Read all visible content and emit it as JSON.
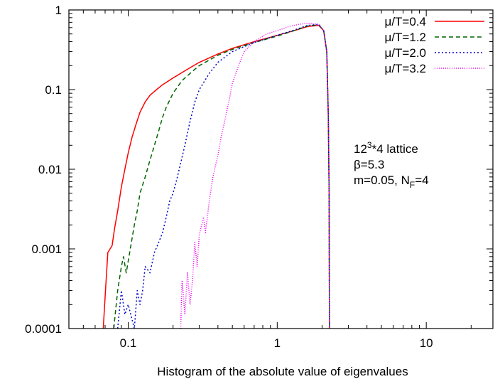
{
  "chart_data": {
    "type": "line",
    "title": "",
    "xlabel": "Histogram of the absolute value of eigenvalues",
    "ylabel": "",
    "xscale": "log",
    "yscale": "log",
    "xlim": [
      0.04,
      28
    ],
    "ylim": [
      0.0001,
      1
    ],
    "grid": false,
    "legend_position": "top-right",
    "x_ticks": [
      {
        "value": 0.1,
        "label": "0.1"
      },
      {
        "value": 1,
        "label": "1"
      },
      {
        "value": 10,
        "label": "10"
      }
    ],
    "y_ticks": [
      {
        "value": 1,
        "label": "1"
      },
      {
        "value": 0.1,
        "label": "0.1"
      },
      {
        "value": 0.01,
        "label": "0.01"
      },
      {
        "value": 0.001,
        "label": "0.001"
      },
      {
        "value": 0.0001,
        "label": "0.0001"
      }
    ],
    "annotations": {
      "lattice_base": "12",
      "lattice_exp": "3",
      "lattice_rest": "*4 lattice",
      "beta": "β=5.3",
      "mass_prefix": "m=0.05, N",
      "mass_sub": "F",
      "mass_suffix": "=4"
    },
    "series": [
      {
        "name": "μ/T=0.4",
        "color": "#ff0000",
        "dash": "solid",
        "points": [
          [
            0.068,
            0.0001
          ],
          [
            0.07,
            0.00025
          ],
          [
            0.073,
            0.0009
          ],
          [
            0.078,
            0.0011
          ],
          [
            0.081,
            0.0018
          ],
          [
            0.085,
            0.003
          ],
          [
            0.09,
            0.006
          ],
          [
            0.095,
            0.01
          ],
          [
            0.1,
            0.016
          ],
          [
            0.106,
            0.025
          ],
          [
            0.113,
            0.037
          ],
          [
            0.12,
            0.052
          ],
          [
            0.13,
            0.07
          ],
          [
            0.14,
            0.085
          ],
          [
            0.155,
            0.1
          ],
          [
            0.17,
            0.115
          ],
          [
            0.2,
            0.14
          ],
          [
            0.25,
            0.18
          ],
          [
            0.3,
            0.22
          ],
          [
            0.4,
            0.28
          ],
          [
            0.5,
            0.33
          ],
          [
            0.7,
            0.4
          ],
          [
            1.0,
            0.48
          ],
          [
            1.3,
            0.55
          ],
          [
            1.6,
            0.62
          ],
          [
            1.9,
            0.64
          ],
          [
            2.05,
            0.55
          ],
          [
            2.15,
            0.3
          ],
          [
            2.2,
            0.05
          ],
          [
            2.23,
            0.005
          ],
          [
            2.24,
            0.0001
          ]
        ]
      },
      {
        "name": "μ/T=1.2",
        "color": "#006400",
        "dash": "6,4",
        "points": [
          [
            0.08,
            0.0001
          ],
          [
            0.085,
            0.0003
          ],
          [
            0.09,
            0.0006
          ],
          [
            0.093,
            0.0008
          ],
          [
            0.097,
            0.0005
          ],
          [
            0.1,
            0.0007
          ],
          [
            0.105,
            0.0012
          ],
          [
            0.11,
            0.002
          ],
          [
            0.115,
            0.003
          ],
          [
            0.12,
            0.005
          ],
          [
            0.13,
            0.008
          ],
          [
            0.14,
            0.013
          ],
          [
            0.15,
            0.02
          ],
          [
            0.16,
            0.03
          ],
          [
            0.17,
            0.045
          ],
          [
            0.18,
            0.06
          ],
          [
            0.2,
            0.09
          ],
          [
            0.23,
            0.13
          ],
          [
            0.27,
            0.17
          ],
          [
            0.3,
            0.2
          ],
          [
            0.4,
            0.27
          ],
          [
            0.5,
            0.32
          ],
          [
            0.7,
            0.39
          ],
          [
            1.0,
            0.47
          ],
          [
            1.3,
            0.55
          ],
          [
            1.6,
            0.63
          ],
          [
            1.9,
            0.65
          ],
          [
            2.05,
            0.55
          ],
          [
            2.15,
            0.3
          ],
          [
            2.2,
            0.05
          ],
          [
            2.23,
            0.005
          ],
          [
            2.24,
            0.0001
          ]
        ]
      },
      {
        "name": "μ/T=2.0",
        "color": "#0000cc",
        "dash": "2,3",
        "points": [
          [
            0.085,
            0.0001
          ],
          [
            0.09,
            0.0003
          ],
          [
            0.095,
            0.00015
          ],
          [
            0.1,
            0.0002
          ],
          [
            0.11,
            0.0001
          ],
          [
            0.115,
            0.0003
          ],
          [
            0.12,
            0.0002
          ],
          [
            0.125,
            0.0003
          ],
          [
            0.13,
            0.0006
          ],
          [
            0.14,
            0.0005
          ],
          [
            0.15,
            0.0009
          ],
          [
            0.16,
            0.0012
          ],
          [
            0.17,
            0.0016
          ],
          [
            0.18,
            0.0025
          ],
          [
            0.19,
            0.004
          ],
          [
            0.2,
            0.005
          ],
          [
            0.21,
            0.007
          ],
          [
            0.22,
            0.01
          ],
          [
            0.24,
            0.02
          ],
          [
            0.26,
            0.04
          ],
          [
            0.28,
            0.07
          ],
          [
            0.3,
            0.1
          ],
          [
            0.35,
            0.16
          ],
          [
            0.4,
            0.22
          ],
          [
            0.5,
            0.3
          ],
          [
            0.7,
            0.39
          ],
          [
            1.0,
            0.48
          ],
          [
            1.3,
            0.56
          ],
          [
            1.6,
            0.64
          ],
          [
            1.9,
            0.66
          ],
          [
            2.05,
            0.55
          ],
          [
            2.15,
            0.3
          ],
          [
            2.2,
            0.05
          ],
          [
            2.23,
            0.005
          ],
          [
            2.24,
            0.0001
          ]
        ]
      },
      {
        "name": "μ/T=3.2",
        "color": "#ee00ee",
        "dash": "1,2",
        "points": [
          [
            0.225,
            0.0001
          ],
          [
            0.23,
            0.0004
          ],
          [
            0.24,
            0.00015
          ],
          [
            0.25,
            0.0005
          ],
          [
            0.26,
            0.0002
          ],
          [
            0.27,
            0.0004
          ],
          [
            0.28,
            0.0012
          ],
          [
            0.29,
            0.0006
          ],
          [
            0.3,
            0.0015
          ],
          [
            0.32,
            0.0025
          ],
          [
            0.33,
            0.0016
          ],
          [
            0.35,
            0.004
          ],
          [
            0.37,
            0.008
          ],
          [
            0.4,
            0.015
          ],
          [
            0.42,
            0.025
          ],
          [
            0.45,
            0.045
          ],
          [
            0.48,
            0.08
          ],
          [
            0.5,
            0.12
          ],
          [
            0.55,
            0.2
          ],
          [
            0.6,
            0.3
          ],
          [
            0.7,
            0.4
          ],
          [
            0.85,
            0.5
          ],
          [
            1.0,
            0.55
          ],
          [
            1.2,
            0.62
          ],
          [
            1.4,
            0.66
          ],
          [
            1.6,
            0.68
          ],
          [
            1.9,
            0.66
          ],
          [
            2.05,
            0.55
          ],
          [
            2.15,
            0.3
          ],
          [
            2.2,
            0.05
          ],
          [
            2.23,
            0.005
          ],
          [
            2.24,
            0.0001
          ]
        ]
      }
    ]
  }
}
